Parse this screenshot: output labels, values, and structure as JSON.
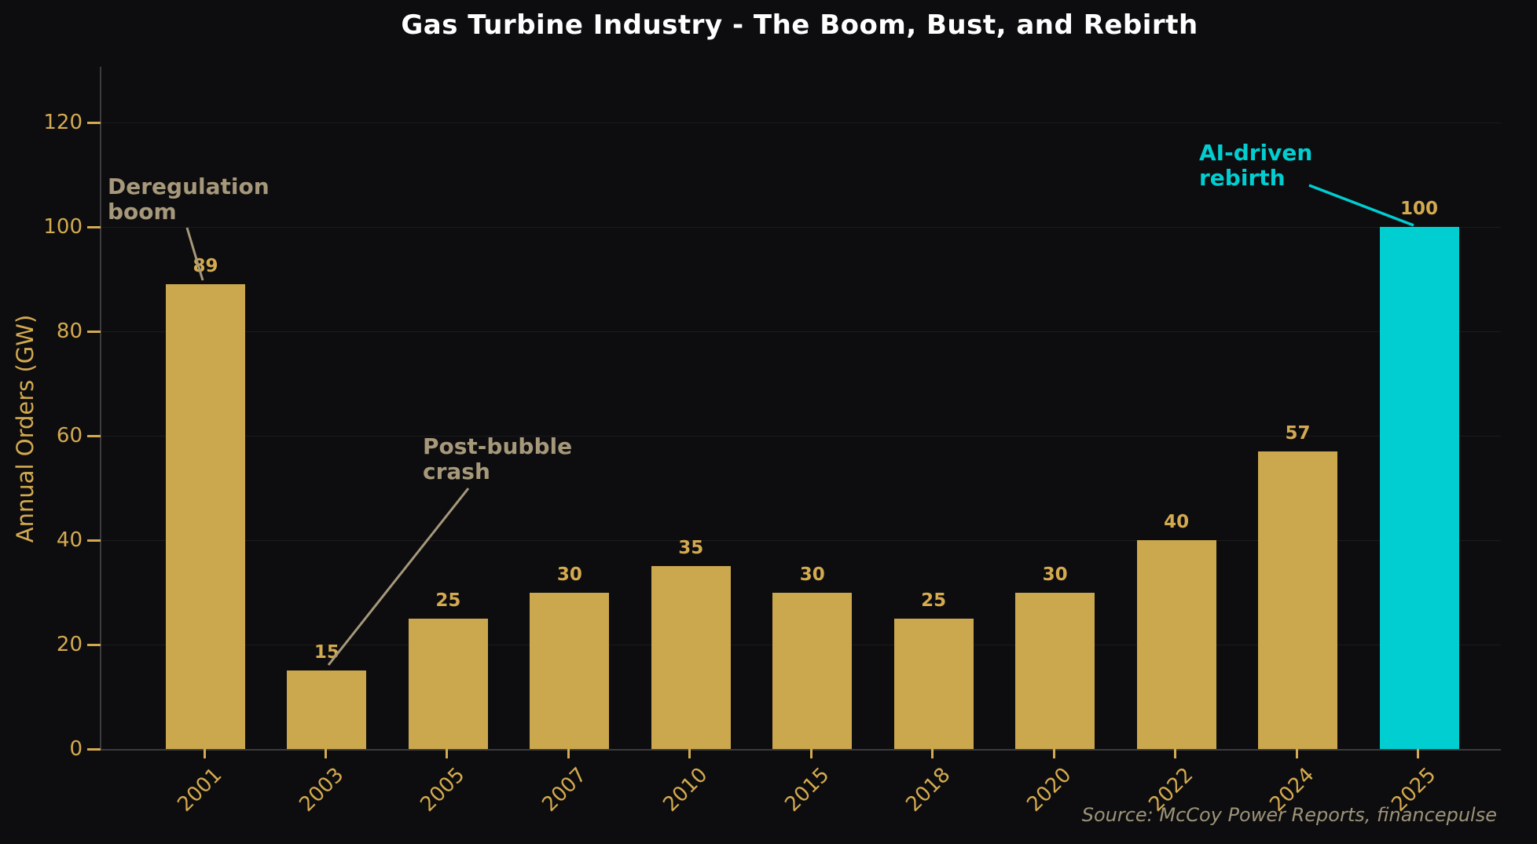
{
  "chart_data": {
    "type": "bar",
    "title": "Gas Turbine Industry - The Boom, Bust, and Rebirth",
    "ylabel": "Annual Orders (GW)",
    "xlabel": "",
    "categories": [
      "2001",
      "2003",
      "2005",
      "2007",
      "2010",
      "2015",
      "2018",
      "2020",
      "2022",
      "2024",
      "2025"
    ],
    "values": [
      89,
      15,
      25,
      30,
      35,
      30,
      25,
      30,
      40,
      57,
      100
    ],
    "yticks": [
      0,
      20,
      40,
      60,
      80,
      100,
      120
    ],
    "ylim": [
      0,
      130
    ],
    "grid": true,
    "legend": false,
    "highlight_index": 10,
    "annotations": [
      {
        "text": "Deregulation\nboom",
        "target": "2001",
        "color_key": "tan"
      },
      {
        "text": "Post-bubble\ncrash",
        "target": "2003",
        "color_key": "tan"
      },
      {
        "text": "AI-driven\nrebirth",
        "target": "2025",
        "color_key": "cyan"
      }
    ],
    "source": "Source: McCoy Power Reports, financepulse"
  },
  "colors": {
    "background": "#0d0d0f",
    "bar_gold": "#cba84e",
    "bar_cyan": "#00ced1",
    "gold_text": "#d4aa50",
    "tan": "#a6987a",
    "cyan": "#00ced1",
    "title": "#ffffff",
    "spine": "#3c3c40",
    "grid": "#1b1b1e",
    "source_text": "#9d9379"
  }
}
